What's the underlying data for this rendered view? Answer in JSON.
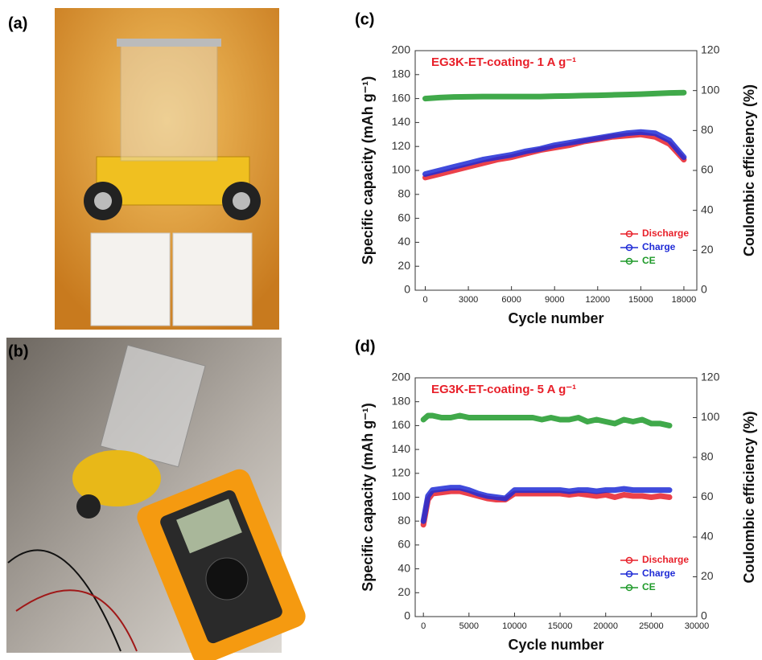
{
  "panels": {
    "a": "(a)",
    "b": "(b)"
  },
  "chart_data": [
    {
      "type": "line",
      "label": "(c)",
      "annotation": "EG3K-ET-coating- 1 A g⁻¹",
      "x_label": "Cycle number",
      "y_label": "Specific capacity (mAh g⁻¹)",
      "y2_label": "Coulombic efficiency (%)",
      "x": [
        0,
        1000,
        2000,
        3000,
        4000,
        5000,
        6000,
        7000,
        8000,
        9000,
        10000,
        11000,
        12000,
        13000,
        14000,
        15000,
        16000,
        17000,
        18000
      ],
      "series": [
        {
          "name": "Discharge",
          "color": "#e8202a",
          "values": [
            94,
            97,
            100,
            103,
            106,
            109,
            111,
            114,
            117,
            119,
            121,
            124,
            126,
            128,
            129,
            130,
            128,
            122,
            109
          ]
        },
        {
          "name": "Charge",
          "color": "#1f2bd6",
          "values": [
            97,
            100,
            103,
            106,
            109,
            111,
            113,
            116,
            118,
            121,
            123,
            125,
            127,
            129,
            131,
            132,
            131,
            125,
            111
          ]
        },
        {
          "name": "CE",
          "color": "#1f9a2a",
          "axis": "y2",
          "values": [
            96,
            96.5,
            96.8,
            96.9,
            97,
            97,
            97,
            97,
            97,
            97.2,
            97.3,
            97.5,
            97.6,
            97.8,
            98,
            98.2,
            98.5,
            98.8,
            99
          ]
        }
      ],
      "xlim": [
        -700,
        18900
      ],
      "xticks": [
        0,
        3000,
        6000,
        9000,
        12000,
        15000,
        18000
      ],
      "ylim": [
        0,
        200
      ],
      "yticks": [
        0,
        20,
        40,
        60,
        80,
        100,
        120,
        140,
        160,
        180,
        200
      ],
      "y2lim": [
        0,
        120
      ],
      "y2ticks": [
        0,
        20,
        40,
        60,
        80,
        100,
        120
      ],
      "legend": "lower right"
    },
    {
      "type": "line",
      "label": "(d)",
      "annotation": "EG3K-ET-coating- 5 A g⁻¹",
      "x_label": "Cycle number",
      "y_label": "Specific capacity (mAh g⁻¹)",
      "y2_label": "Coulombic efficiency (%)",
      "x": [
        0,
        500,
        1000,
        2000,
        3000,
        4000,
        5000,
        6000,
        7000,
        8000,
        9000,
        10000,
        11000,
        12000,
        13000,
        14000,
        15000,
        16000,
        17000,
        18000,
        19000,
        20000,
        21000,
        22000,
        23000,
        24000,
        25000,
        26000,
        27000
      ],
      "series": [
        {
          "name": "Discharge",
          "color": "#e8202a",
          "values": [
            77,
            98,
            103,
            104,
            105,
            105,
            103,
            101,
            99,
            98,
            98,
            103,
            103,
            103,
            103,
            103,
            103,
            102,
            103,
            102,
            101,
            102,
            100,
            102,
            101,
            101,
            100,
            101,
            100
          ]
        },
        {
          "name": "Charge",
          "color": "#1f2bd6",
          "values": [
            80,
            101,
            106,
            107,
            108,
            108,
            106,
            103,
            101,
            100,
            99,
            106,
            106,
            106,
            106,
            106,
            106,
            105,
            106,
            106,
            105,
            106,
            106,
            107,
            106,
            106,
            106,
            106,
            106
          ]
        },
        {
          "name": "CE",
          "color": "#1f9a2a",
          "axis": "y2",
          "values": [
            99,
            101,
            101,
            100,
            100,
            101,
            100,
            100,
            100,
            100,
            100,
            100,
            100,
            100,
            99,
            100,
            99,
            99,
            100,
            98,
            99,
            98,
            97,
            99,
            98,
            99,
            97,
            97,
            96
          ]
        }
      ],
      "xlim": [
        -900,
        30000
      ],
      "xticks": [
        0,
        5000,
        10000,
        15000,
        20000,
        25000,
        30000
      ],
      "ylim": [
        0,
        200
      ],
      "yticks": [
        0,
        20,
        40,
        60,
        80,
        100,
        120,
        140,
        160,
        180,
        200
      ],
      "y2lim": [
        0,
        120
      ],
      "y2ticks": [
        0,
        20,
        40,
        60,
        80,
        100,
        120
      ],
      "legend": "lower right"
    }
  ]
}
